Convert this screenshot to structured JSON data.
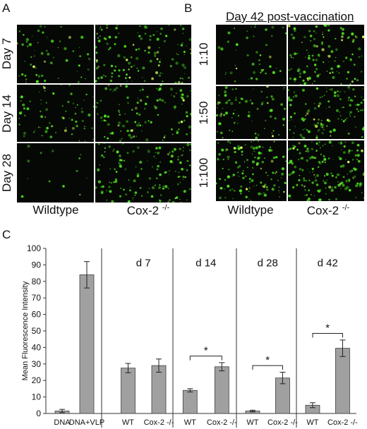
{
  "panels": {
    "a": {
      "letter": "A",
      "rows": [
        "Day 7",
        "Day 14",
        "Day 28"
      ],
      "columns": [
        "Wildtype",
        "Cox-2 -/-"
      ],
      "cell_density": [
        [
          0.35,
          0.65
        ],
        [
          0.45,
          0.6
        ],
        [
          0.08,
          0.7
        ]
      ]
    },
    "b": {
      "letter": "B",
      "heading": "Day 42 post-vaccination",
      "rows": [
        "1:10",
        "1:50",
        "1:100"
      ],
      "columns": [
        "Wildtype",
        "Cox-2 -/-"
      ],
      "cell_density": [
        [
          0.3,
          0.75
        ],
        [
          0.55,
          0.85
        ],
        [
          0.85,
          1.0
        ]
      ]
    },
    "c": {
      "letter": "C"
    }
  },
  "colors": {
    "bar_fill": "#a0a0a0",
    "bar_stroke": "#404040",
    "fluorescence": "#4fe020",
    "cell_background": "#050805"
  },
  "chart_data": {
    "type": "bar",
    "ylabel": "Mean Fluorescence Intensity",
    "xlabel": "",
    "ylim": [
      0,
      100
    ],
    "yticks": [
      0,
      10,
      20,
      30,
      40,
      50,
      60,
      70,
      80,
      90,
      100
    ],
    "categories": [
      "DNA",
      "DNA+VLP",
      "WT",
      "Cox-2 -/-",
      "WT",
      "Cox-2 -/-",
      "WT",
      "Cox-2 -/-",
      "WT",
      "Cox-2 -/-"
    ],
    "values": [
      1.5,
      84,
      27.5,
      29,
      14,
      28.3,
      1.5,
      21.5,
      5,
      39.5
    ],
    "errors": [
      1,
      8,
      2.8,
      4,
      1,
      2.5,
      0.5,
      3.5,
      1.5,
      5
    ],
    "group_labels": [
      {
        "label": "d 7",
        "start": 2,
        "end": 3
      },
      {
        "label": "d 14",
        "start": 4,
        "end": 5
      },
      {
        "label": "d 28",
        "start": 6,
        "end": 7
      },
      {
        "label": "d 42",
        "start": 8,
        "end": 9
      }
    ],
    "separators_after": [
      1,
      3,
      5,
      7
    ],
    "significance": [
      {
        "pair": [
          4,
          5
        ],
        "label": "*"
      },
      {
        "pair": [
          6,
          7
        ],
        "label": "*"
      },
      {
        "pair": [
          8,
          9
        ],
        "label": "*"
      }
    ],
    "grid": false
  }
}
